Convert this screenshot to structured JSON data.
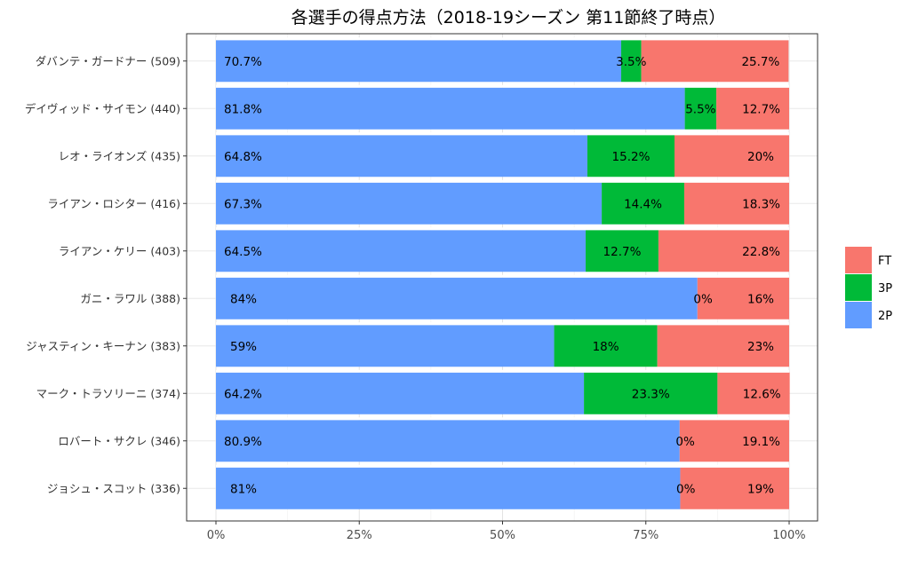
{
  "chart_data": {
    "type": "bar",
    "orientation": "horizontal",
    "stacked": true,
    "title": "各選手の得点方法（2018-19シーズン 第11節終了時点）",
    "xlabel": "",
    "ylabel": "",
    "xlim": [
      0,
      100
    ],
    "x_ticks": [
      "0%",
      "25%",
      "50%",
      "75%",
      "100%"
    ],
    "x_tick_values": [
      0,
      25,
      50,
      75,
      100
    ],
    "grid": true,
    "legend_position": "right",
    "categories": [
      "ダバンテ・ガードナー (509)",
      "デイヴィッド・サイモン (440)",
      "レオ・ライオンズ (435)",
      "ライアン・ロシター (416)",
      "ライアン・ケリー (403)",
      "ガニ・ラワル (388)",
      "ジャスティン・キーナン (383)",
      "マーク・トラソリーニ (374)",
      "ロバート・サクレ (346)",
      "ジョシュ・スコット (336)"
    ],
    "series": [
      {
        "name": "2P",
        "color": "#619CFF",
        "values": [
          70.7,
          81.8,
          64.8,
          67.3,
          64.5,
          84,
          59,
          64.2,
          80.9,
          81
        ],
        "labels": [
          "70.7%",
          "81.8%",
          "64.8%",
          "67.3%",
          "64.5%",
          "84%",
          "59%",
          "64.2%",
          "80.9%",
          "81%"
        ]
      },
      {
        "name": "3P",
        "color": "#00BA38",
        "values": [
          3.5,
          5.5,
          15.2,
          14.4,
          12.7,
          0,
          18,
          23.3,
          0,
          0
        ],
        "labels": [
          "3.5%",
          "5.5%",
          "15.2%",
          "14.4%",
          "12.7%",
          "0%",
          "18%",
          "23.3%",
          "0%",
          "0%"
        ]
      },
      {
        "name": "FT",
        "color": "#F8766D",
        "values": [
          25.7,
          12.7,
          20,
          18.3,
          22.8,
          16,
          23,
          12.6,
          19.1,
          19
        ],
        "labels": [
          "25.7%",
          "12.7%",
          "20%",
          "18.3%",
          "22.8%",
          "16%",
          "23%",
          "12.6%",
          "19.1%",
          "19%"
        ]
      }
    ],
    "legend": [
      "FT",
      "3P",
      "2P"
    ]
  }
}
